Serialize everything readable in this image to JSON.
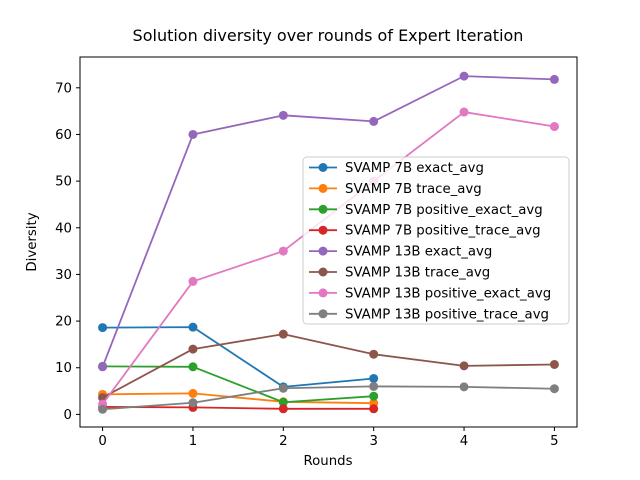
{
  "chart_data": {
    "type": "line",
    "title": "Solution diversity over rounds of Expert Iteration",
    "xlabel": "Rounds",
    "ylabel": "Diversity",
    "x_ticks": [
      0,
      1,
      2,
      3,
      4,
      5
    ],
    "y_ticks": [
      0,
      10,
      20,
      30,
      40,
      50,
      60,
      70
    ],
    "xlim": [
      -0.25,
      5.25
    ],
    "ylim": [
      -2.7,
      76.6
    ],
    "grid": false,
    "legend_position": "inside-center-right",
    "legend_background": "rgba(255,255,255,0.8)",
    "legend_border_color": "#cccccc",
    "axis_color": "#000000",
    "background_color": "#ffffff",
    "marker": "circle",
    "series": [
      {
        "name": "SVAMP 7B exact_avg",
        "color": "#1f77b4",
        "x": [
          0,
          1,
          2,
          3
        ],
        "y": [
          18.6,
          18.7,
          5.9,
          7.7
        ]
      },
      {
        "name": "SVAMP 7B trace_avg",
        "color": "#ff7f0e",
        "x": [
          0,
          1,
          2,
          3
        ],
        "y": [
          4.3,
          4.5,
          2.7,
          2.4
        ]
      },
      {
        "name": "SVAMP 7B positive_exact_avg",
        "color": "#2ca02c",
        "x": [
          0,
          1,
          2,
          3
        ],
        "y": [
          10.3,
          10.2,
          2.6,
          3.9
        ]
      },
      {
        "name": "SVAMP 7B positive_trace_avg",
        "color": "#d62728",
        "x": [
          0,
          1,
          2,
          3
        ],
        "y": [
          1.6,
          1.5,
          1.2,
          1.2
        ]
      },
      {
        "name": "SVAMP 13B exact_avg",
        "color": "#9467bd",
        "x": [
          0,
          1,
          2,
          3,
          4,
          5
        ],
        "y": [
          10.2,
          60.0,
          64.1,
          62.8,
          72.5,
          71.8
        ]
      },
      {
        "name": "SVAMP 13B trace_avg",
        "color": "#8c564b",
        "x": [
          0,
          1,
          2,
          3,
          4,
          5
        ],
        "y": [
          3.6,
          14.0,
          17.2,
          12.9,
          10.4,
          10.7
        ]
      },
      {
        "name": "SVAMP 13B positive_exact_avg",
        "color": "#e377c2",
        "x": [
          0,
          1,
          2,
          3,
          4,
          5
        ],
        "y": [
          2.2,
          28.5,
          35.0,
          50.0,
          64.8,
          61.7
        ]
      },
      {
        "name": "SVAMP 13B positive_trace_avg",
        "color": "#7f7f7f",
        "x": [
          0,
          1,
          2,
          3,
          4,
          5
        ],
        "y": [
          1.1,
          2.5,
          5.6,
          6.0,
          5.9,
          5.5
        ]
      }
    ]
  }
}
